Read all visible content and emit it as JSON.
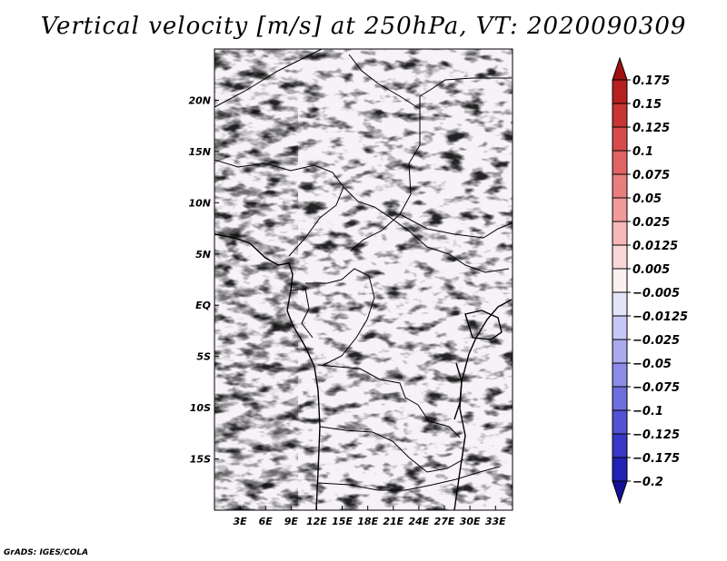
{
  "title": "Vertical velocity [m/s] at 250hPa, VT: 2020090309",
  "footer": "GrADS: IGES/COLA",
  "map": {
    "lat_range": [
      -20,
      25
    ],
    "lon_range": [
      0,
      35
    ],
    "lat_labels": [
      "20N",
      "15N",
      "10N",
      "5N",
      "EQ",
      "5S",
      "10S",
      "15S"
    ],
    "lat_values": [
      20,
      15,
      10,
      5,
      0,
      -5,
      -10,
      -15
    ],
    "lon_labels": [
      "3E",
      "6E",
      "9E",
      "12E",
      "15E",
      "18E",
      "21E",
      "24E",
      "27E",
      "30E",
      "33E"
    ],
    "lon_values": [
      3,
      6,
      9,
      12,
      15,
      18,
      21,
      24,
      27,
      30,
      33
    ]
  },
  "colorbar": {
    "labels": [
      "0.175",
      "0.15",
      "0.125",
      "0.1",
      "0.075",
      "0.05",
      "0.025",
      "0.0125",
      "0.005",
      "−0.005",
      "−0.0125",
      "−0.025",
      "−0.05",
      "−0.075",
      "−0.1",
      "−0.125",
      "−0.175",
      "−0.2"
    ],
    "colors": [
      "#a01010",
      "#b52020",
      "#c73535",
      "#d64c4c",
      "#e06464",
      "#e87e7e",
      "#f09a9a",
      "#f6b8b8",
      "#fbd8d8",
      "#fdf0f0",
      "#e4e4fb",
      "#c8c8f6",
      "#aaaaef",
      "#8c8ce8",
      "#6e6ede",
      "#5252d2",
      "#3838c4",
      "#2222b4",
      "#141096"
    ]
  }
}
